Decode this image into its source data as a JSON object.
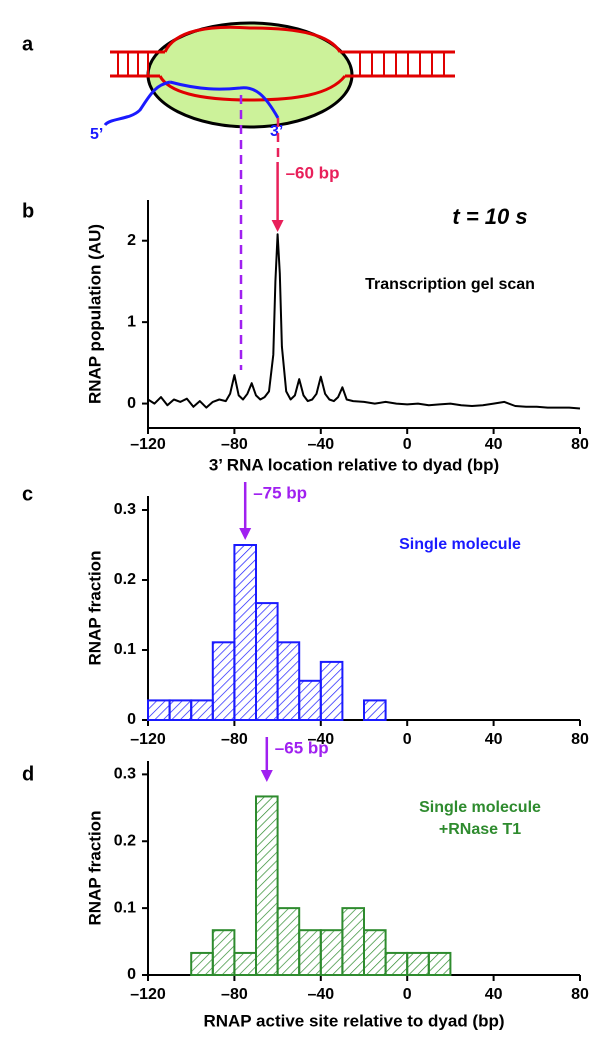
{
  "panel_labels": [
    "a",
    "b",
    "c",
    "d"
  ],
  "diagram": {
    "labels": [
      "5’",
      "3’"
    ]
  },
  "chart_data": [
    {
      "type": "line",
      "x": [
        -120,
        -117,
        -114,
        -111,
        -108,
        -105,
        -102,
        -99,
        -96,
        -93,
        -90,
        -87,
        -84,
        -82,
        -80,
        -78,
        -76,
        -74,
        -72,
        -70,
        -68,
        -66,
        -64,
        -62,
        -61,
        -60,
        -59,
        -58,
        -56,
        -54,
        -52,
        -50,
        -48,
        -46,
        -44,
        -42,
        -40,
        -38,
        -36,
        -34,
        -32,
        -30,
        -28,
        -25,
        -20,
        -15,
        -10,
        -5,
        0,
        5,
        10,
        15,
        20,
        25,
        30,
        35,
        40,
        45,
        50,
        55,
        60,
        65,
        70,
        75,
        80
      ],
      "values": [
        0.05,
        0.0,
        0.08,
        -0.02,
        0.05,
        0.02,
        0.06,
        -0.04,
        0.03,
        -0.05,
        0.02,
        0.05,
        0.03,
        0.12,
        0.35,
        0.1,
        0.05,
        0.12,
        0.25,
        0.1,
        0.05,
        0.08,
        0.15,
        0.6,
        1.5,
        2.08,
        1.6,
        0.7,
        0.15,
        0.05,
        0.1,
        0.3,
        0.1,
        0.03,
        0.05,
        0.12,
        0.33,
        0.12,
        0.05,
        0.03,
        0.08,
        0.2,
        0.05,
        0.03,
        0.02,
        0.0,
        0.02,
        0.0,
        -0.01,
        0.0,
        -0.02,
        -0.01,
        0.0,
        -0.02,
        -0.03,
        -0.02,
        0.0,
        0.02,
        -0.03,
        -0.04,
        -0.04,
        -0.05,
        -0.05,
        -0.05,
        -0.06
      ],
      "color": "#000000",
      "xlim": [
        -120,
        80
      ],
      "ylim": [
        -0.3,
        2.5
      ],
      "xticks": [
        {
          "value": -120,
          "label": "–120"
        },
        {
          "value": -80,
          "label": "–80"
        },
        {
          "value": -40,
          "label": "–40"
        },
        0,
        40,
        80
      ],
      "yticks": [
        0,
        1,
        2
      ],
      "xlabel": "3’ RNA location relative to dyad (bp)",
      "ylabel": "RNAP population (AU)",
      "annotations": [
        {
          "text": "–60 bp",
          "x": -60,
          "color": "#e8205a"
        }
      ],
      "labels": [
        "t = 10 s",
        "Transcription gel scan"
      ]
    },
    {
      "type": "histogram",
      "bins": [
        -120,
        -110,
        -100,
        -90,
        -80,
        -70,
        -60,
        -50,
        -40,
        -30,
        -20,
        -10
      ],
      "values": [
        0.028,
        0.028,
        0.028,
        0.111,
        0.25,
        0.167,
        0.111,
        0.056,
        0.083,
        0,
        0.028
      ],
      "color": "#1a1aff",
      "xlim": [
        -120,
        80
      ],
      "ylim": [
        0,
        0.32
      ],
      "xticks": [
        {
          "value": -120,
          "label": "–120"
        },
        {
          "value": -80,
          "label": "–80"
        },
        {
          "value": -40,
          "label": "–40"
        },
        0,
        40,
        80
      ],
      "yticks": [
        0,
        0.1,
        0.2,
        0.3
      ],
      "ylabel": "RNAP fraction",
      "annotations": [
        {
          "text": "–75 bp",
          "x": -75,
          "color": "#a020f0"
        }
      ],
      "labels": [
        "Single molecule"
      ]
    },
    {
      "type": "histogram",
      "bins": [
        -100,
        -90,
        -80,
        -70,
        -60,
        -50,
        -40,
        -30,
        -20,
        -10,
        0,
        10,
        20
      ],
      "values": [
        0.033,
        0.067,
        0.033,
        0.267,
        0.1,
        0.067,
        0.067,
        0.1,
        0.067,
        0.033,
        0.033,
        0.033
      ],
      "color": "#2e8b2e",
      "xlim": [
        -120,
        80
      ],
      "ylim": [
        0,
        0.32
      ],
      "xticks": [
        {
          "value": -120,
          "label": "–120"
        },
        {
          "value": -80,
          "label": "–80"
        },
        {
          "value": -40,
          "label": "–40"
        },
        0,
        40,
        80
      ],
      "yticks": [
        0,
        0.1,
        0.2,
        0.3
      ],
      "xlabel": "RNAP active site relative to dyad (bp)",
      "ylabel": "RNAP fraction",
      "annotations": [
        {
          "text": "–65 bp",
          "x": -65,
          "color": "#a020f0"
        }
      ],
      "labels": [
        "Single molecule",
        "+RNase T1"
      ]
    }
  ]
}
